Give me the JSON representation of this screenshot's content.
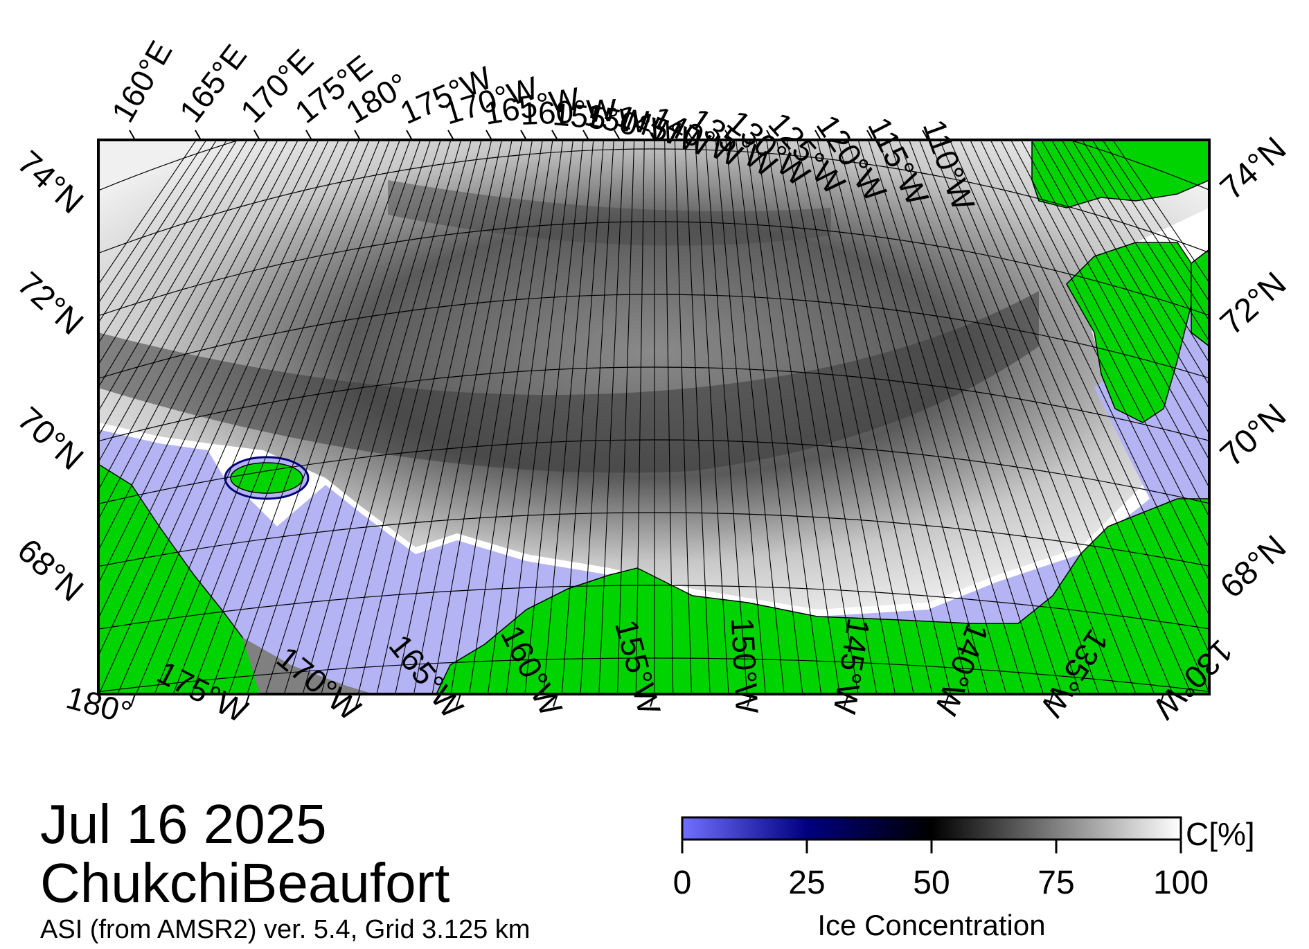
{
  "map": {
    "date": "Jul 16 2025",
    "region": "ChukchiBeaufort",
    "source_note": "ASI (from AMSR2) ver. 5.4,  Grid 3.125 km",
    "top_lon_labels": [
      "160°E",
      "165°E",
      "170°E",
      "175°E",
      "180°",
      "175°W",
      "170°W",
      "165°W",
      "160°W",
      "155°W",
      "150°W",
      "145°W",
      "140°W",
      "135°W",
      "130°W",
      "125°W",
      "120°W",
      "115°W",
      "110°W"
    ],
    "bottom_lon_labels": [
      "180°",
      "175°W",
      "170°W",
      "165°W",
      "160°W",
      "155°W",
      "150°W",
      "145°W",
      "140°W",
      "135°W",
      "130°W"
    ],
    "left_lat_labels": [
      "74°N",
      "72°N",
      "70°N",
      "68°N"
    ],
    "right_lat_labels": [
      "74°N",
      "72°N",
      "70°N",
      "68°N"
    ],
    "colors": {
      "land": "#00d400",
      "open_water": "#b4b4f4",
      "no_data": "#808080",
      "ice_high": "#ffffff",
      "ice_mid": "#000000",
      "ice_low": "#000080",
      "ice_zero": "#6464ff"
    }
  },
  "colorbar": {
    "title": "Ice Concentration",
    "unit": "C[%]",
    "ticks": [
      "0",
      "25",
      "50",
      "75",
      "100"
    ],
    "tick_values": [
      0,
      25,
      50,
      75,
      100
    ],
    "range": [
      0,
      100
    ]
  }
}
